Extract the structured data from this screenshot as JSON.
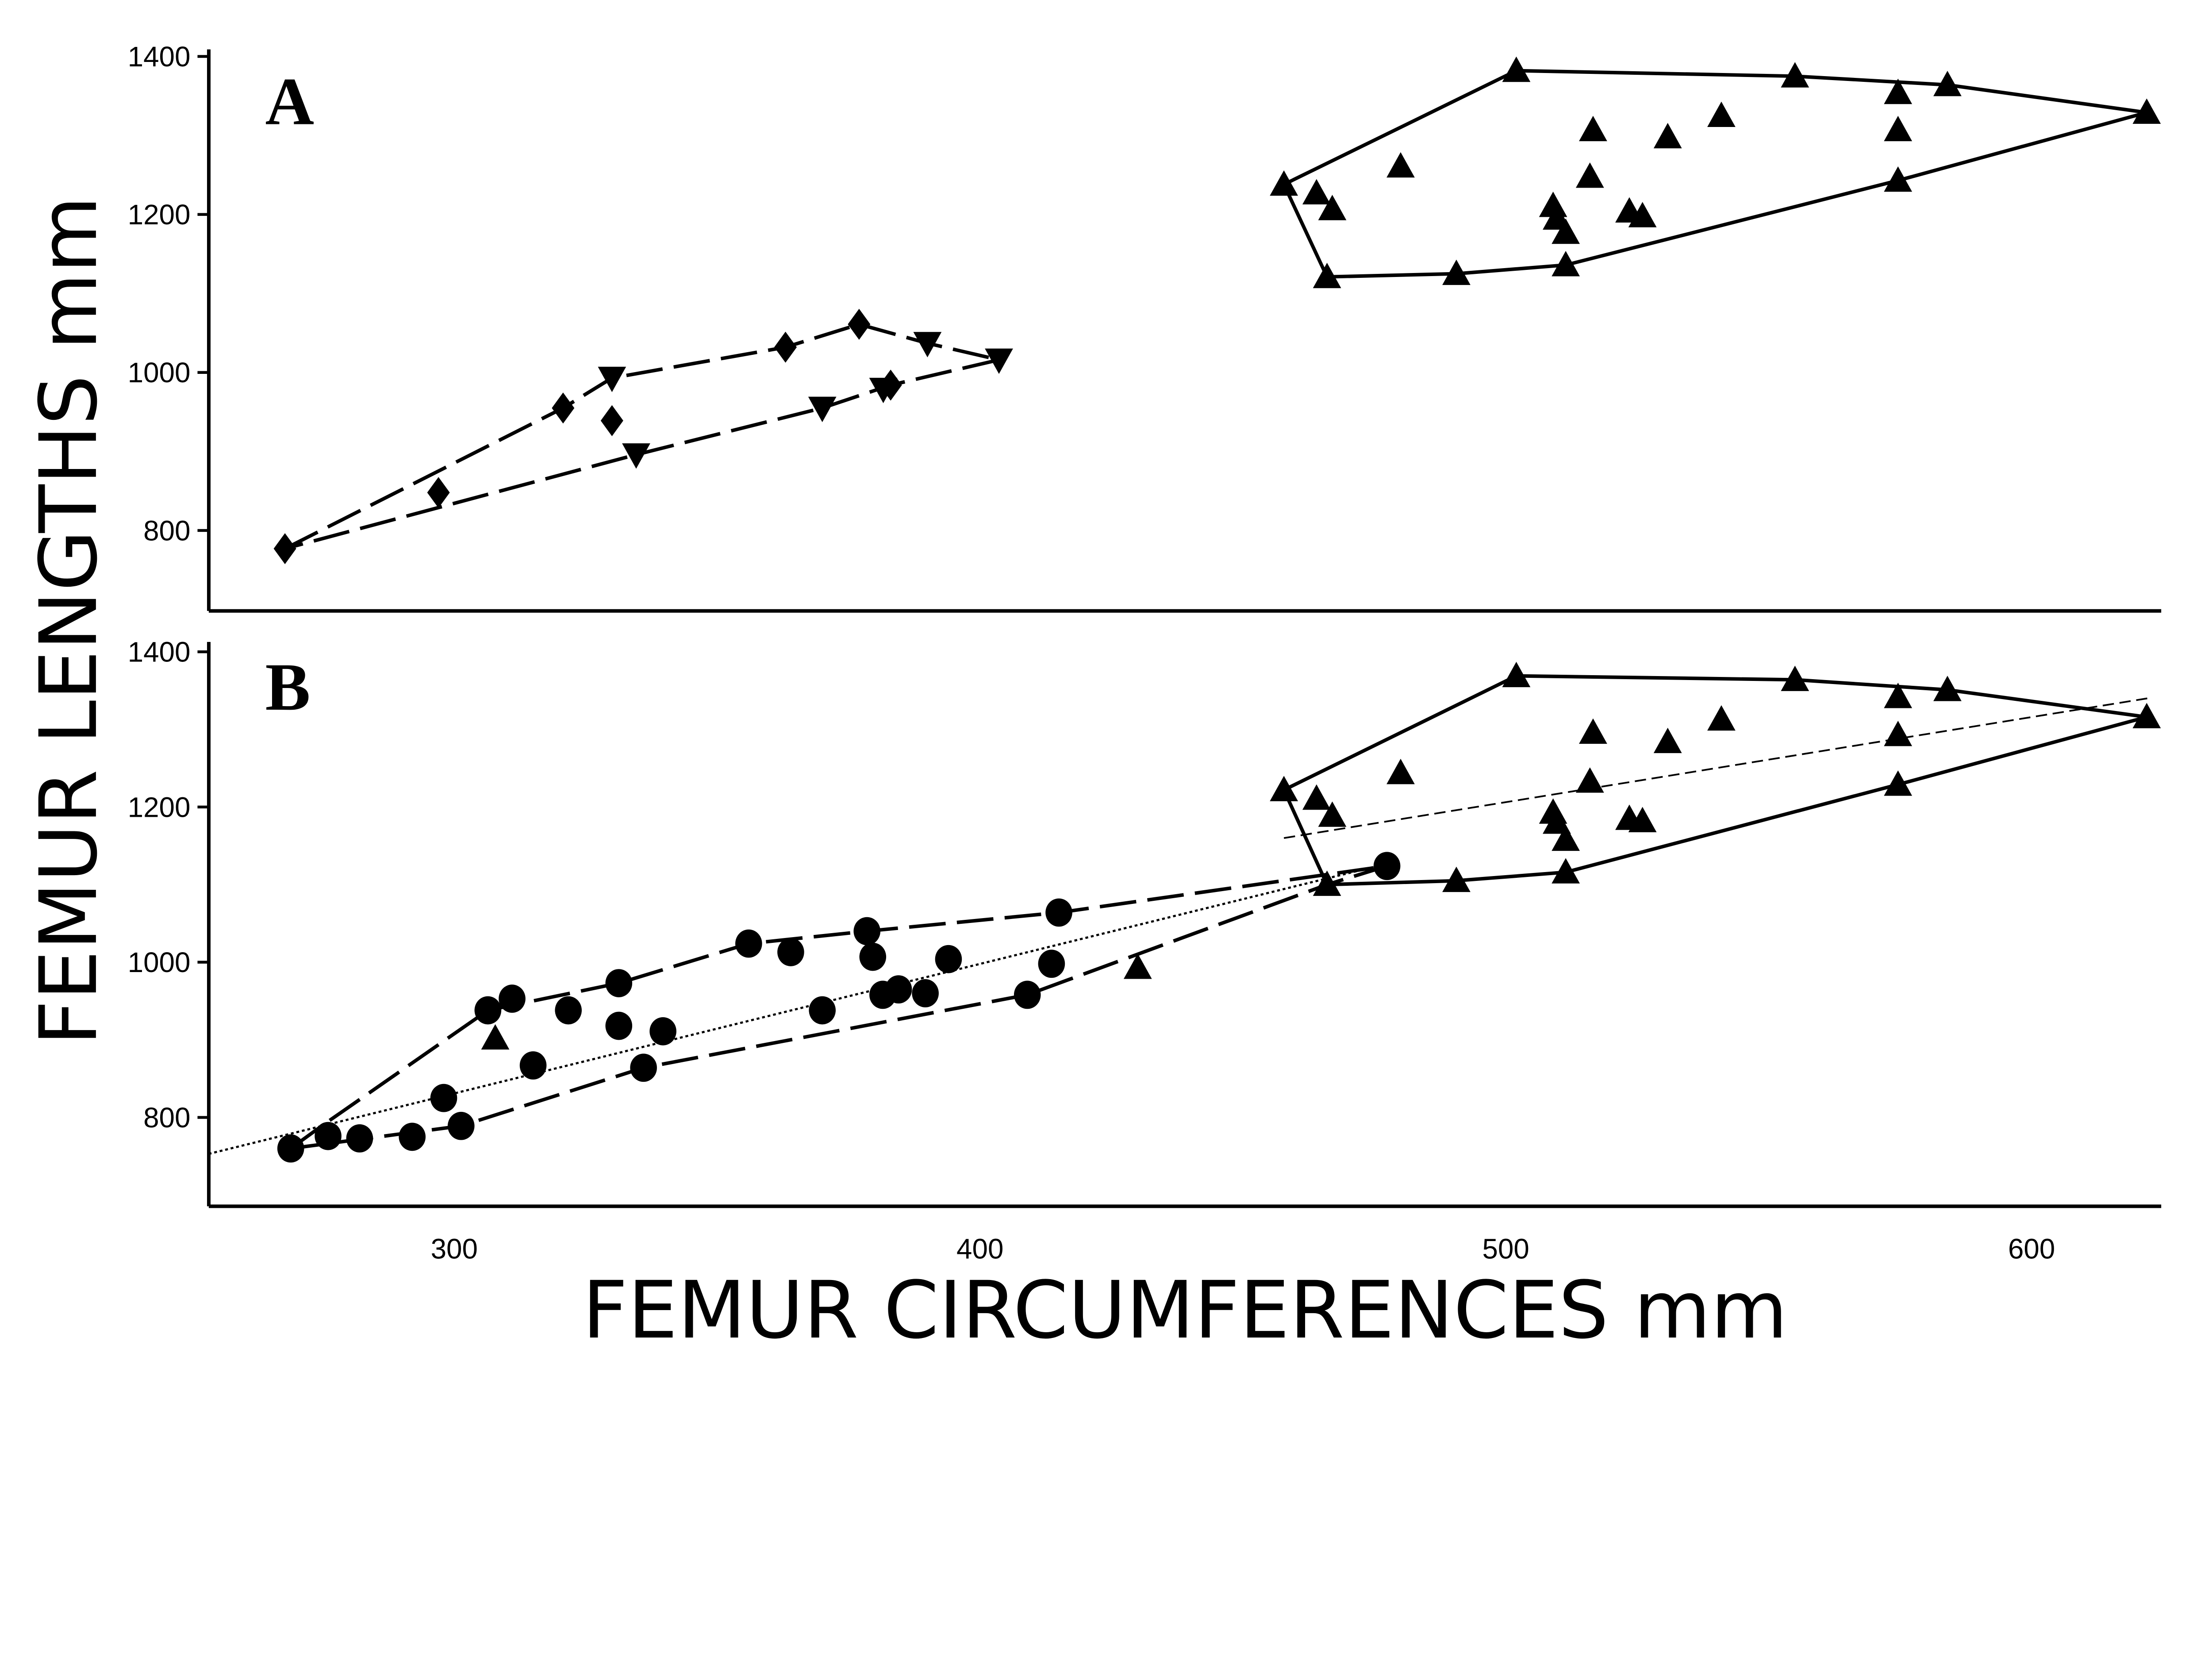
{
  "chart_data": [
    {
      "type": "scatter",
      "panel_label": "A",
      "xlim": [
        253,
        630
      ],
      "ylim": [
        700,
        1410
      ],
      "yticks": [
        "800",
        "1000",
        "1200",
        "1400"
      ],
      "grid": false,
      "series": [
        {
          "marker": "diamond",
          "hull": "dashed",
          "points": [
            [
              267.8,
              777
            ],
            [
              297,
              848
            ],
            [
              320.7,
              955
            ],
            [
              330,
              939
            ],
            [
              363,
              1032
            ],
            [
              377,
              1061
            ],
            [
              383,
              984
            ]
          ]
        },
        {
          "marker": "triangle-down",
          "hull": "dashed",
          "points": [
            [
              330,
              993
            ],
            [
              334.6,
              896
            ],
            [
              370,
              955
            ],
            [
              381.6,
              979
            ],
            [
              390,
              1037
            ],
            [
              403.6,
              1016
            ]
          ]
        },
        {
          "marker": "triangle-up",
          "hull": "solid",
          "points": [
            [
              457.8,
              1238
            ],
            [
              464,
              1227
            ],
            [
              467,
              1207
            ],
            [
              480,
              1261
            ],
            [
              466,
              1121
            ],
            [
              490.6,
              1125
            ],
            [
              502,
              1382
            ],
            [
              516.6,
              1307
            ],
            [
              516,
              1248
            ],
            [
              509,
              1211
            ],
            [
              509.7,
              1195
            ],
            [
              511.4,
              1177
            ],
            [
              523.5,
              1204
            ],
            [
              526,
              1198
            ],
            [
              530.8,
              1298
            ],
            [
              541,
              1325
            ],
            [
              511.4,
              1136
            ],
            [
              555,
              1375
            ],
            [
              574.6,
              1354
            ],
            [
              574.6,
              1307
            ],
            [
              574.6,
              1243
            ],
            [
              584,
              1364
            ],
            [
              621.9,
              1329
            ]
          ]
        }
      ],
      "hulls": [
        {
          "style": "dashed",
          "points": [
            [
              267.8,
              777
            ],
            [
              320.7,
              955
            ],
            [
              330,
              993
            ],
            [
              363,
              1032
            ],
            [
              377,
              1061
            ],
            [
              390,
              1037
            ],
            [
              403.6,
              1016
            ],
            [
              383,
              984
            ],
            [
              370,
              955
            ],
            [
              334.6,
              896
            ],
            [
              267.8,
              777
            ]
          ]
        },
        {
          "style": "solid",
          "points": [
            [
              457.8,
              1238
            ],
            [
              502,
              1382
            ],
            [
              555,
              1375
            ],
            [
              584,
              1364
            ],
            [
              621.9,
              1329
            ],
            [
              574.6,
              1243
            ],
            [
              511.4,
              1136
            ],
            [
              490.6,
              1125
            ],
            [
              466,
              1121
            ],
            [
              457.8,
              1238
            ]
          ]
        }
      ]
    },
    {
      "type": "scatter",
      "panel_label": "B",
      "xlim": [
        253,
        630
      ],
      "ylim": [
        690,
        1410
      ],
      "yticks": [
        "800",
        "1000",
        "1200",
        "1400"
      ],
      "xticks": [
        "300",
        "400",
        "500",
        "600"
      ],
      "grid": false,
      "series": [
        {
          "marker": "circle",
          "hull": "dashed",
          "points": [
            [
              268.9,
              760
            ],
            [
              276,
              776
            ],
            [
              282,
              773
            ],
            [
              292,
              775
            ],
            [
              301.3,
              789
            ],
            [
              298,
              825
            ],
            [
              306.4,
              938
            ],
            [
              311,
              953
            ],
            [
              315,
              867
            ],
            [
              321.7,
              938
            ],
            [
              331.3,
              973
            ],
            [
              331.3,
              918
            ],
            [
              336,
              864
            ],
            [
              339.7,
              911
            ],
            [
              356,
              1024
            ],
            [
              364,
              1013
            ],
            [
              370,
              938
            ],
            [
              378.5,
              1040
            ],
            [
              379.6,
              1007
            ],
            [
              381.5,
              958
            ],
            [
              384.5,
              965
            ],
            [
              389.6,
              960
            ],
            [
              394,
              1004
            ],
            [
              409,
              958
            ],
            [
              413.6,
              998
            ],
            [
              415,
              1064
            ],
            [
              477.4,
              1124
            ]
          ]
        },
        {
          "marker": "triangle-up",
          "hull": "solid",
          "points": [
            [
              307.8,
              902
            ],
            [
              430,
              993
            ],
            [
              457.8,
              1222
            ],
            [
              464,
              1211
            ],
            [
              467,
              1189
            ],
            [
              480,
              1244
            ],
            [
              466,
              1100
            ],
            [
              490.6,
              1105
            ],
            [
              502,
              1369
            ],
            [
              516.6,
              1296
            ],
            [
              516,
              1233
            ],
            [
              509,
              1193
            ],
            [
              509.7,
              1180
            ],
            [
              511.4,
              1158
            ],
            [
              523.5,
              1185
            ],
            [
              526,
              1182
            ],
            [
              530.8,
              1284
            ],
            [
              541,
              1313
            ],
            [
              511.4,
              1116
            ],
            [
              555,
              1364
            ],
            [
              574.6,
              1342
            ],
            [
              574.6,
              1293
            ],
            [
              574.6,
              1229
            ],
            [
              584,
              1351
            ],
            [
              621.9,
              1316
            ]
          ]
        }
      ],
      "hulls": [
        {
          "style": "dashed",
          "points": [
            [
              268.9,
              760
            ],
            [
              275,
              790
            ],
            [
              306.4,
              938
            ],
            [
              331.3,
              973
            ],
            [
              356,
              1024
            ],
            [
              378.5,
              1040
            ],
            [
              415,
              1064
            ],
            [
              477.4,
              1124
            ],
            [
              466,
              1100
            ],
            [
              409,
              958
            ],
            [
              336,
              864
            ],
            [
              301.3,
              789
            ],
            [
              268.9,
              760
            ]
          ]
        },
        {
          "style": "solid",
          "points": [
            [
              457.8,
              1222
            ],
            [
              502,
              1369
            ],
            [
              555,
              1364
            ],
            [
              584,
              1351
            ],
            [
              621.9,
              1316
            ],
            [
              574.6,
              1229
            ],
            [
              511.4,
              1116
            ],
            [
              490.6,
              1105
            ],
            [
              466,
              1100
            ],
            [
              457.8,
              1222
            ]
          ]
        }
      ],
      "regressions": [
        {
          "style": "dotted",
          "points": [
            [
              253.3,
              753
            ],
            [
              477.4,
              1127
            ]
          ]
        },
        {
          "style": "thin-dashed",
          "points": [
            [
              457.8,
              1160
            ],
            [
              622,
              1340
            ]
          ]
        }
      ]
    }
  ],
  "xlabel": "FEMUR CIRCUMFERENCES mm",
  "ylabel": "FEMUR LENGTHS mm"
}
